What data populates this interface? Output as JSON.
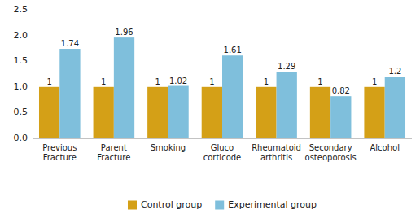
{
  "chart_data": {
    "type": "bar",
    "categories": [
      "Previous\nFracture",
      "Parent\nFracture",
      "Smoking",
      "Gluco\ncorticode",
      "Rheumatoid\narthritis",
      "Secondary\nosteoporosis",
      "Alcohol"
    ],
    "series": [
      {
        "name": "Control group",
        "color": "#D4A017",
        "values": [
          1,
          1,
          1,
          1,
          1,
          1,
          1
        ]
      },
      {
        "name": "Experimental group",
        "color": "#7FBFDC",
        "values": [
          1.74,
          1.96,
          1.02,
          1.61,
          1.29,
          0.82,
          1.2
        ]
      }
    ],
    "ylim": [
      0,
      2.5
    ],
    "yticks": [
      {
        "value": 0,
        "label": "0.0"
      },
      0.5,
      {
        "value": 1,
        "label": "1.0"
      },
      1.5,
      {
        "value": 2,
        "label": "2.0"
      },
      2.5
    ],
    "grid": false,
    "data_labels": true,
    "legend": "bottom"
  }
}
